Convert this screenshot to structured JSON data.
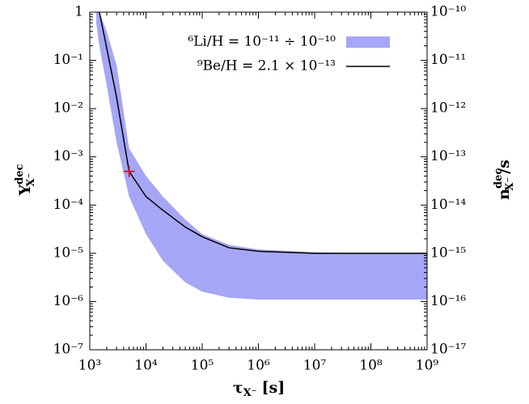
{
  "chart_data": {
    "type": "line",
    "x_label": {
      "symbol": "τ",
      "sub": "X⁻",
      "unit": "[s]"
    },
    "y_label": {
      "symbol": "Y",
      "sup": "dec",
      "sub": "X⁻"
    },
    "y2_label": {
      "symbol": "n",
      "sup": "dec",
      "sub": "X⁻",
      "tail": "/s"
    },
    "log_x": true,
    "log_y": true,
    "xlim": [
      1000,
      1000000000
    ],
    "xticks": [
      {
        "value": 1000,
        "label": "10³"
      },
      {
        "value": 10000,
        "label": "10⁴"
      },
      {
        "value": 100000,
        "label": "10⁵"
      },
      {
        "value": 1000000,
        "label": "10⁶"
      },
      {
        "value": 10000000,
        "label": "10⁷"
      },
      {
        "value": 100000000,
        "label": "10⁸"
      },
      {
        "value": 1000000000,
        "label": "10⁹"
      }
    ],
    "ylim": [
      1e-07,
      1
    ],
    "yticks": [
      {
        "value": 1e-07,
        "label": "10⁻⁷"
      },
      {
        "value": 1e-06,
        "label": "10⁻⁶"
      },
      {
        "value": 1e-05,
        "label": "10⁻⁵"
      },
      {
        "value": 0.0001,
        "label": "10⁻⁴"
      },
      {
        "value": 0.001,
        "label": "10⁻³"
      },
      {
        "value": 0.01,
        "label": "10⁻²"
      },
      {
        "value": 0.1,
        "label": "10⁻¹"
      },
      1
    ],
    "y2lim": [
      1e-17,
      1e-10
    ],
    "y2ticks": [
      {
        "value": 1e-17,
        "label": "10⁻¹⁷"
      },
      {
        "value": 1e-16,
        "label": "10⁻¹⁶"
      },
      {
        "value": 1e-15,
        "label": "10⁻¹⁵"
      },
      {
        "value": 1e-14,
        "label": "10⁻¹⁴"
      },
      {
        "value": 1e-13,
        "label": "10⁻¹³"
      },
      {
        "value": 1e-12,
        "label": "10⁻¹²"
      },
      {
        "value": 1e-11,
        "label": "10⁻¹¹"
      },
      {
        "value": 1e-10,
        "label": "10⁻¹⁰"
      }
    ],
    "x": [
      1300,
      1480,
      2000,
      3000,
      5000,
      10000,
      20000,
      50000,
      100000,
      300000,
      1000000,
      10000000,
      100000000,
      1000000000
    ],
    "series": [
      {
        "name": "⁶Li/H = 10⁻¹¹ ÷ 10⁻¹⁰",
        "color": "#a6a6f6",
        "upper": [
          1,
          1,
          0.4,
          0.08,
          0.0015,
          0.0004,
          0.00015,
          5e-05,
          2.5e-05,
          1.5e-05,
          1.2e-05,
          1.05e-05,
          1e-05,
          1e-05
        ],
        "lower": [
          0.6,
          0.2,
          0.03,
          0.002,
          0.00015,
          2.5e-05,
          7e-06,
          2.5e-06,
          1.6e-06,
          1.2e-06,
          1.1e-06,
          1.1e-06,
          1.1e-06,
          1.1e-06
        ]
      },
      {
        "name": "⁹Be/H = 2.1 × 10⁻¹³",
        "color": "#000000",
        "values": [
          null,
          1,
          0.18,
          0.017,
          0.0005,
          0.00015,
          7.8e-05,
          3.5e-05,
          2.2e-05,
          1.3e-05,
          1.1e-05,
          1e-05,
          1e-05,
          1e-05
        ]
      }
    ],
    "marker": {
      "x": 5000,
      "y": 0.0005,
      "color": "#dd0000"
    }
  }
}
